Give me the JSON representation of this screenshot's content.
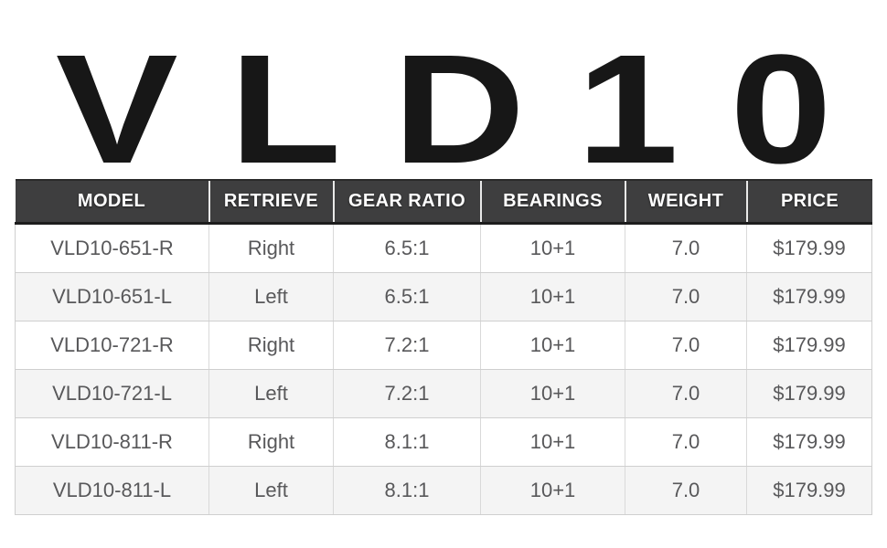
{
  "title": "VLD10",
  "table": {
    "columns": [
      "MODEL",
      "RETRIEVE",
      "GEAR RATIO",
      "BEARINGS",
      "WEIGHT",
      "PRICE"
    ],
    "rows": [
      [
        "VLD10-651-R",
        "Right",
        "6.5:1",
        "10+1",
        "7.0",
        "$179.99"
      ],
      [
        "VLD10-651-L",
        "Left",
        "6.5:1",
        "10+1",
        "7.0",
        "$179.99"
      ],
      [
        "VLD10-721-R",
        "Right",
        "7.2:1",
        "10+1",
        "7.0",
        "$179.99"
      ],
      [
        "VLD10-721-L",
        "Left",
        "7.2:1",
        "10+1",
        "7.0",
        "$179.99"
      ],
      [
        "VLD10-811-R",
        "Right",
        "8.1:1",
        "10+1",
        "7.0",
        "$179.99"
      ],
      [
        "VLD10-811-L",
        "Left",
        "8.1:1",
        "10+1",
        "7.0",
        "$179.99"
      ]
    ],
    "colors": {
      "header_bg": "#3e3e3f",
      "header_text": "#ffffff",
      "row_bg": "#ffffff",
      "row_alt_bg": "#f4f4f4",
      "cell_text": "#58585a",
      "border": "#cfcfcf",
      "title_color": "#171717"
    }
  }
}
